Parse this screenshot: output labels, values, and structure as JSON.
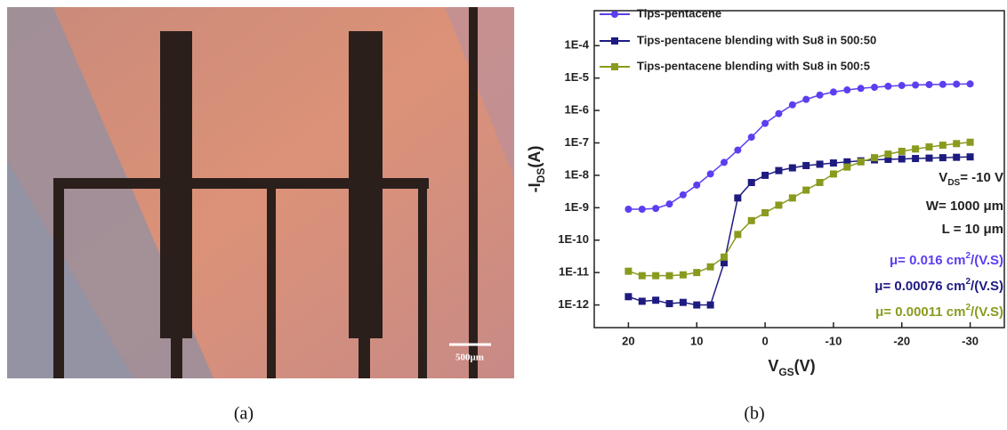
{
  "figure": {
    "captions": [
      "(a)",
      "(b)"
    ],
    "scale_bar_label": "500μm"
  },
  "chart_data": {
    "type": "line",
    "log_y": true,
    "legend": "upper left",
    "ylabel": {
      "main": "-I",
      "sub": "DS",
      "unit": "(A)"
    },
    "xlabel": {
      "main": "V",
      "sub": "GS",
      "unit": "(V)"
    },
    "xlim": [
      25,
      -35
    ],
    "xticks": [
      20,
      10,
      0,
      -10,
      -20,
      -30
    ],
    "ylim": [
      2e-13,
      0.0012
    ],
    "yticks": [
      {
        "value": 1e-12,
        "label": "1E-12"
      },
      {
        "value": 1e-11,
        "label": "1E-11"
      },
      {
        "value": 1e-10,
        "label": "1E-10"
      },
      {
        "value": 1e-09,
        "label": "1E-9"
      },
      {
        "value": 1e-08,
        "label": "1E-8"
      },
      {
        "value": 1e-07,
        "label": "1E-7"
      },
      {
        "value": 1e-06,
        "label": "1E-6"
      },
      {
        "value": 1e-05,
        "label": "1E-5"
      },
      {
        "value": 0.0001,
        "label": "1E-4"
      }
    ],
    "x": [
      20,
      18,
      16,
      14,
      12,
      10,
      8,
      6,
      4,
      2,
      0,
      -2,
      -4,
      -6,
      -8,
      -10,
      -12,
      -14,
      -16,
      -18,
      -20,
      -22,
      -24,
      -26,
      -28,
      -30
    ],
    "series": [
      {
        "name": "Tips-pentacene",
        "color": "#5a3ff0",
        "marker": "circle",
        "values": [
          9e-10,
          9e-10,
          9.5e-10,
          1.3e-09,
          2.5e-09,
          5e-09,
          1.1e-08,
          2.5e-08,
          6e-08,
          1.5e-07,
          4e-07,
          8e-07,
          1.5e-06,
          2.2e-06,
          3e-06,
          3.7e-06,
          4.3e-06,
          4.8e-06,
          5.2e-06,
          5.6e-06,
          5.9e-06,
          6.1e-06,
          6.3e-06,
          6.4e-06,
          6.5e-06,
          6.6e-06
        ]
      },
      {
        "name": "Tips-pentacene blending with Su8 in 500:50",
        "color": "#1e1b80",
        "marker": "square",
        "values": [
          1.8e-12,
          1.3e-12,
          1.4e-12,
          1.1e-12,
          1.2e-12,
          1e-12,
          1e-12,
          2e-11,
          2e-09,
          6e-09,
          1e-08,
          1.4e-08,
          1.7e-08,
          2e-08,
          2.2e-08,
          2.4e-08,
          2.6e-08,
          2.8e-08,
          3e-08,
          3.1e-08,
          3.2e-08,
          3.3e-08,
          3.4e-08,
          3.5e-08,
          3.6e-08,
          3.7e-08
        ]
      },
      {
        "name": "Tips-pentacene blending with Su8 in 500:5",
        "color": "#8a9a1e",
        "marker": "square",
        "values": [
          1.1e-11,
          8e-12,
          8e-12,
          8e-12,
          8.5e-12,
          1e-11,
          1.5e-11,
          3e-11,
          1.5e-10,
          4e-10,
          7e-10,
          1.2e-09,
          2e-09,
          3.5e-09,
          6e-09,
          1.1e-08,
          1.8e-08,
          2.6e-08,
          3.5e-08,
          4.5e-08,
          5.5e-08,
          6.5e-08,
          7.5e-08,
          8.5e-08,
          9.5e-08,
          1.05e-07
        ]
      }
    ],
    "annotations": [
      {
        "color": "#222222",
        "parts": [
          {
            "text": "V"
          },
          {
            "text": "DS",
            "shift": "sub"
          },
          {
            "text": "= -10 V"
          }
        ]
      },
      {
        "color": "#222222",
        "parts": [
          {
            "text": "W= 1000 μm"
          }
        ]
      },
      {
        "color": "#222222",
        "parts": [
          {
            "text": "L = 10 μm"
          }
        ]
      },
      {
        "color": "#5a3ff0",
        "parts": [
          {
            "text": "μ= 0.016 cm"
          },
          {
            "text": "2",
            "shift": "super"
          },
          {
            "text": "/(V.S)"
          }
        ]
      },
      {
        "color": "#1e1b80",
        "parts": [
          {
            "text": "μ= 0.00076 cm"
          },
          {
            "text": "2",
            "shift": "super"
          },
          {
            "text": "/(V.S)"
          }
        ]
      },
      {
        "color": "#8a9a1e",
        "parts": [
          {
            "text": "μ= 0.00011 cm"
          },
          {
            "text": "2",
            "shift": "super"
          },
          {
            "text": "/(V.S)"
          }
        ]
      }
    ]
  }
}
